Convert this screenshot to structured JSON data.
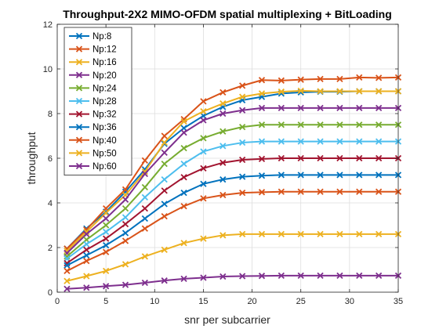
{
  "chart_data": {
    "type": "line",
    "title": "Throughput-2X2 MIMO-OFDM spatial multiplexing + BitLoading",
    "xlabel": "snr per subcarrier",
    "ylabel": "throughput",
    "xlim": [
      0,
      35
    ],
    "ylim": [
      0,
      12
    ],
    "xticks": [
      0,
      5,
      10,
      15,
      20,
      25,
      30,
      35
    ],
    "yticks": [
      0,
      2,
      4,
      6,
      8,
      10,
      12
    ],
    "grid": true,
    "legend_position": "top-left",
    "marker": "x",
    "x": [
      1,
      3,
      5,
      7,
      9,
      11,
      13,
      15,
      17,
      19,
      21,
      23,
      25,
      27,
      29,
      31,
      33,
      35
    ],
    "series": [
      {
        "name": "Np:8",
        "color": "#0072BD",
        "values": [
          1.95,
          2.85,
          3.6,
          4.5,
          5.5,
          6.65,
          7.35,
          7.9,
          8.3,
          8.6,
          8.75,
          8.9,
          8.95,
          8.98,
          8.98,
          9.0,
          9.0,
          9.0
        ]
      },
      {
        "name": "Np:12",
        "color": "#D95319",
        "values": [
          1.95,
          2.8,
          3.75,
          4.6,
          5.9,
          7.0,
          7.75,
          8.55,
          8.95,
          9.25,
          9.5,
          9.48,
          9.52,
          9.55,
          9.55,
          9.62,
          9.6,
          9.62
        ]
      },
      {
        "name": "Np:16",
        "color": "#EDB120",
        "values": [
          1.85,
          2.7,
          3.55,
          4.35,
          5.4,
          6.7,
          7.65,
          8.1,
          8.45,
          8.75,
          8.9,
          8.98,
          9.02,
          9.0,
          9.0,
          9.0,
          9.0,
          9.0
        ]
      },
      {
        "name": "Np:20",
        "color": "#7E2F8E",
        "values": [
          1.75,
          2.6,
          3.3,
          4.15,
          5.3,
          6.25,
          7.15,
          7.7,
          8.0,
          8.15,
          8.25,
          8.25,
          8.25,
          8.25,
          8.25,
          8.25,
          8.25,
          8.25
        ]
      },
      {
        "name": "Np:24",
        "color": "#77AC30",
        "values": [
          1.6,
          2.35,
          3.0,
          3.75,
          4.7,
          5.75,
          6.45,
          6.9,
          7.2,
          7.4,
          7.5,
          7.5,
          7.5,
          7.5,
          7.5,
          7.5,
          7.5,
          7.5
        ]
      },
      {
        "name": "Np:28",
        "color": "#4DBEEE",
        "values": [
          1.5,
          2.15,
          2.7,
          3.35,
          4.25,
          5.05,
          5.75,
          6.3,
          6.55,
          6.7,
          6.75,
          6.75,
          6.75,
          6.75,
          6.75,
          6.75,
          6.75,
          6.75
        ]
      },
      {
        "name": "Np:32",
        "color": "#A2142F",
        "values": [
          1.3,
          1.9,
          2.4,
          3.05,
          3.75,
          4.55,
          5.15,
          5.55,
          5.8,
          5.93,
          5.97,
          6.0,
          6.0,
          6.0,
          6.0,
          6.0,
          6.0,
          6.0
        ]
      },
      {
        "name": "Np:36",
        "color": "#0072BD",
        "values": [
          1.2,
          1.65,
          2.1,
          2.65,
          3.3,
          3.95,
          4.45,
          4.85,
          5.05,
          5.17,
          5.22,
          5.25,
          5.25,
          5.25,
          5.25,
          5.25,
          5.25,
          5.25
        ]
      },
      {
        "name": "Np:40",
        "color": "#D95319",
        "values": [
          0.95,
          1.4,
          1.8,
          2.3,
          2.85,
          3.4,
          3.85,
          4.2,
          4.35,
          4.45,
          4.48,
          4.5,
          4.5,
          4.5,
          4.5,
          4.5,
          4.5,
          4.5
        ]
      },
      {
        "name": "Np:50",
        "color": "#EDB120",
        "values": [
          0.5,
          0.72,
          0.95,
          1.25,
          1.6,
          1.9,
          2.2,
          2.4,
          2.55,
          2.6,
          2.6,
          2.6,
          2.6,
          2.6,
          2.6,
          2.6,
          2.6,
          2.6
        ]
      },
      {
        "name": "Np:60",
        "color": "#7E2F8E",
        "values": [
          0.15,
          0.2,
          0.27,
          0.33,
          0.42,
          0.52,
          0.6,
          0.65,
          0.7,
          0.72,
          0.73,
          0.74,
          0.74,
          0.74,
          0.74,
          0.74,
          0.74,
          0.74
        ]
      }
    ]
  }
}
